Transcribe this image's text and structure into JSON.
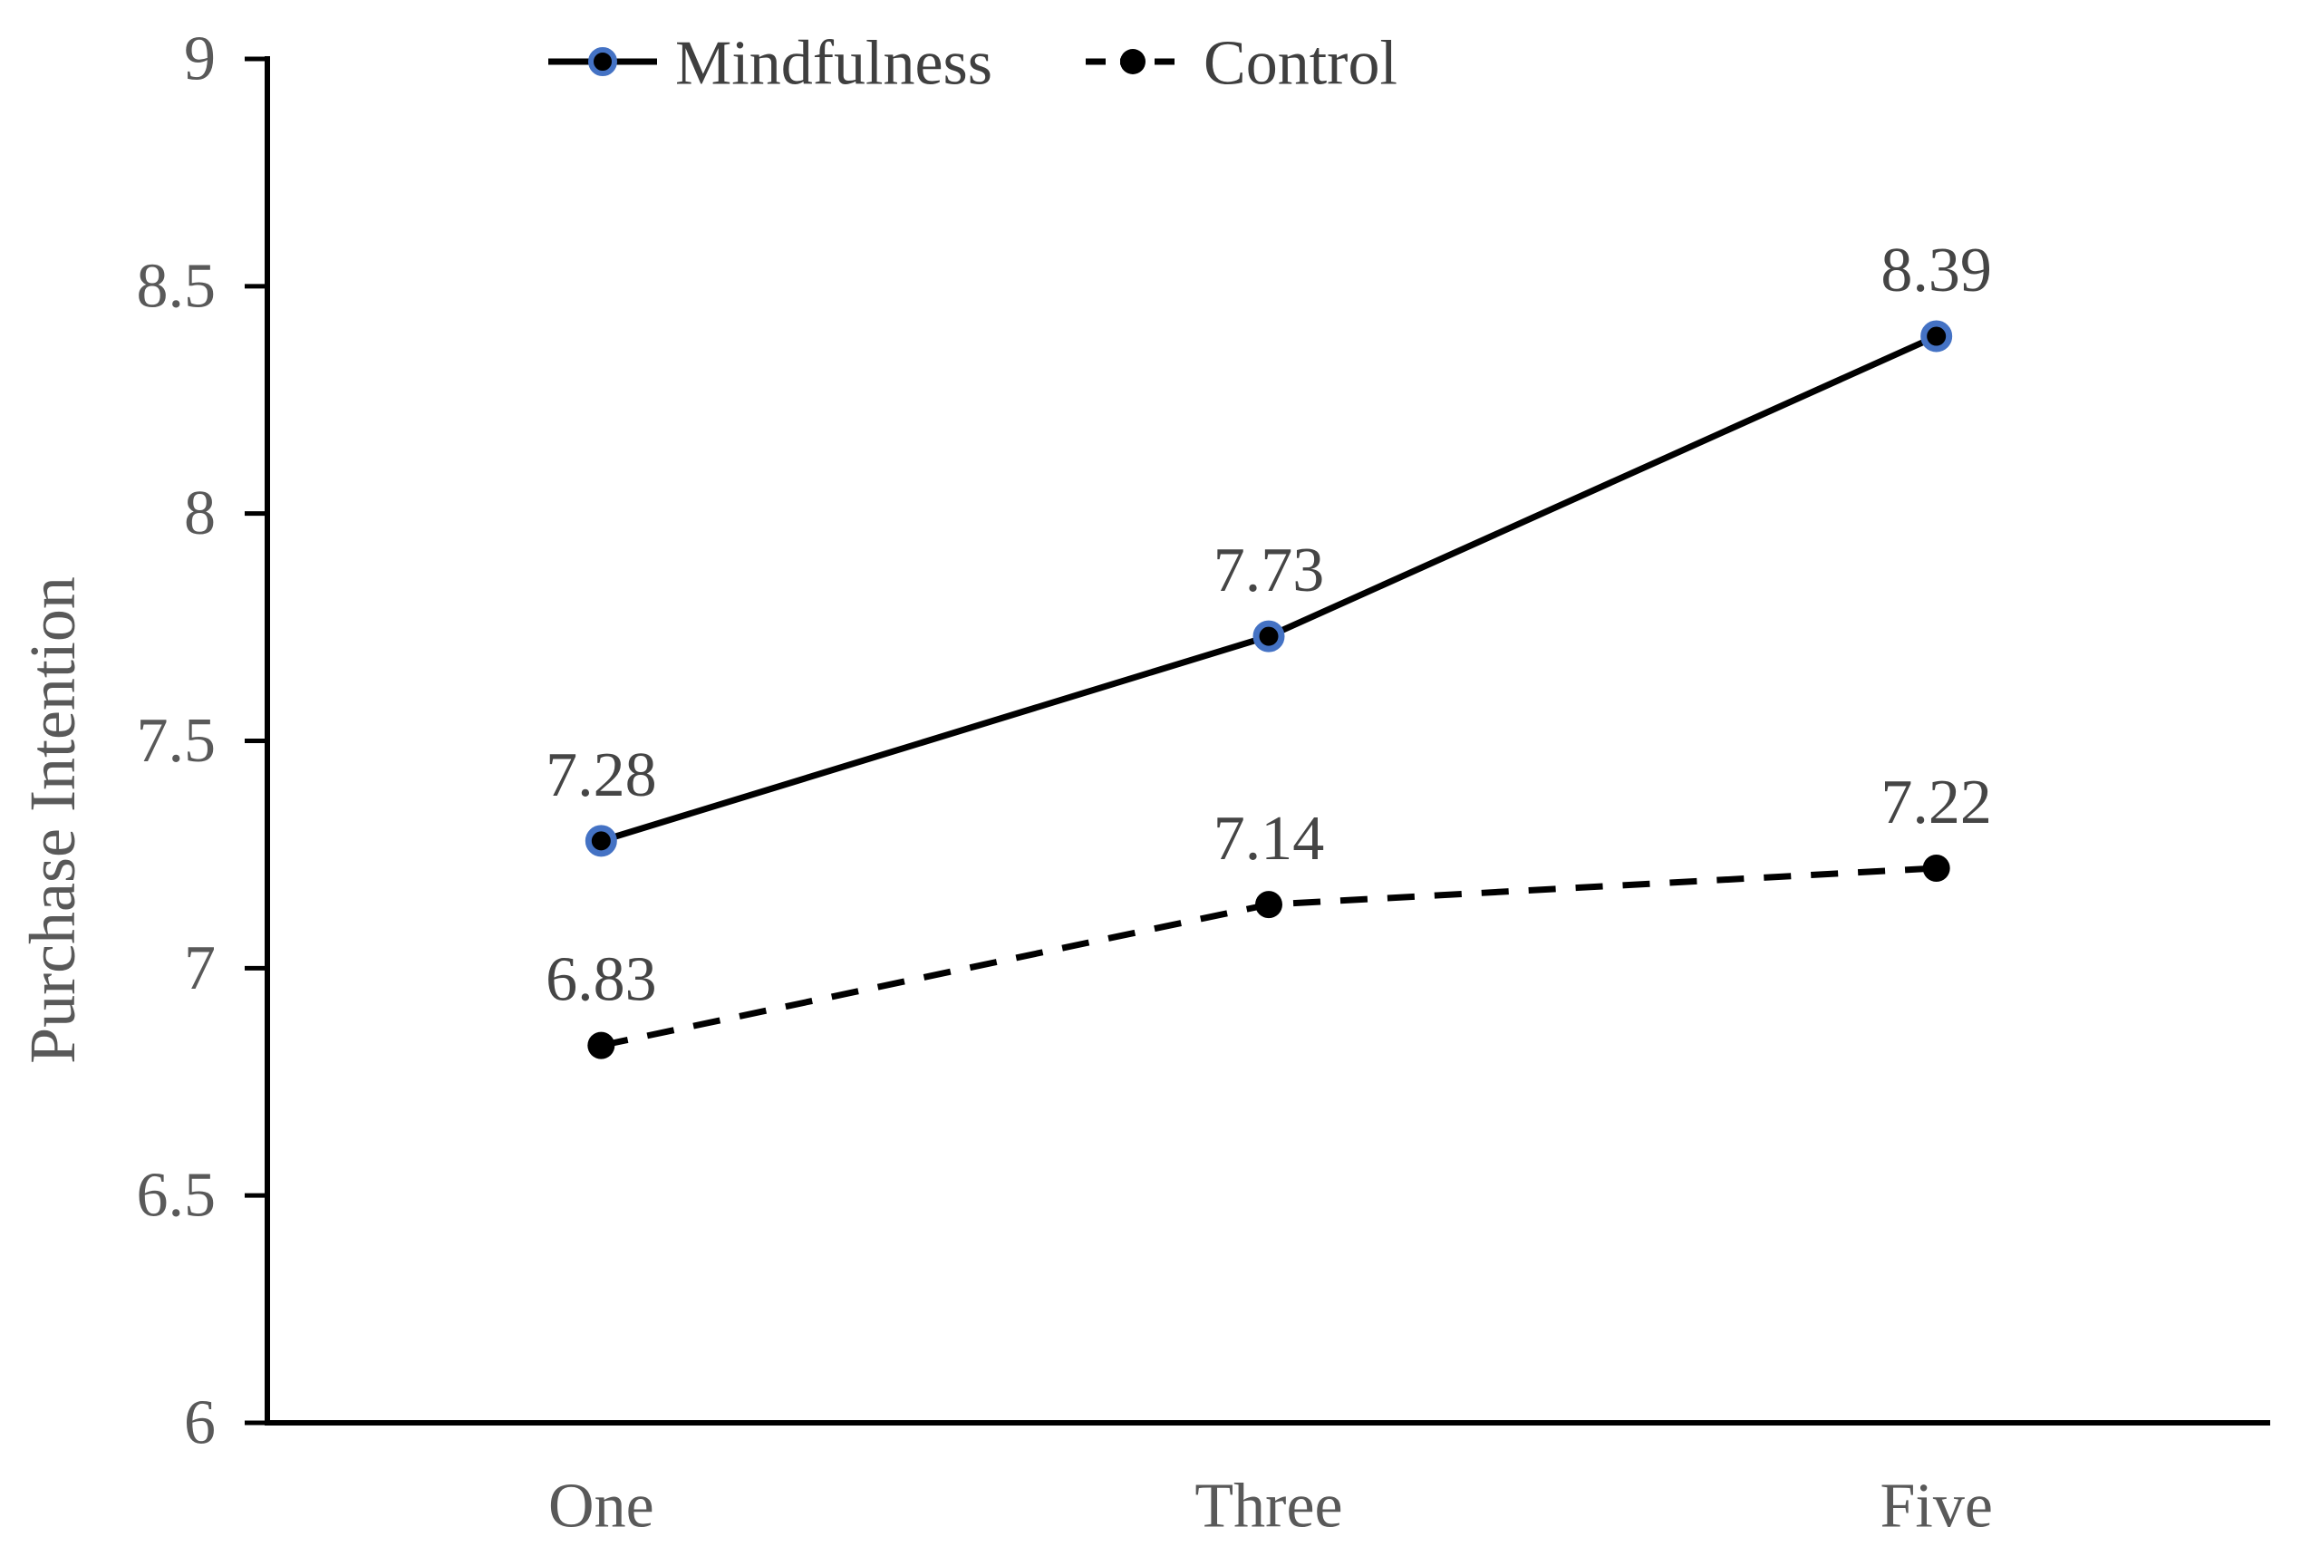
{
  "chart_data": {
    "type": "line",
    "title": "",
    "xlabel": "",
    "ylabel": "Purchase Intention",
    "categories": [
      "One",
      "Three",
      "Five"
    ],
    "series": [
      {
        "name": "Mindfulness",
        "values": [
          7.28,
          7.73,
          8.39
        ],
        "data_labels": [
          "7.28",
          "7.73",
          "8.39"
        ],
        "line_style": "solid",
        "marker": "circle-ringed",
        "marker_fill": "#000000",
        "marker_ring_color": "#4472C4"
      },
      {
        "name": "Control",
        "values": [
          6.83,
          7.14,
          7.22
        ],
        "data_labels": [
          "6.83",
          "7.14",
          "7.22"
        ],
        "line_style": "dashed",
        "marker": "circle",
        "marker_fill": "#000000"
      }
    ],
    "ylim": [
      6,
      9
    ],
    "ytick_step": 0.5,
    "ytick_labels": [
      "6",
      "6.5",
      "7",
      "7.5",
      "8",
      "8.5",
      "9"
    ],
    "legend": {
      "position": "top",
      "entries": [
        "Mindfulness",
        "Control"
      ]
    },
    "grid": false,
    "colors": {
      "line": "#000000",
      "axis": "#000000",
      "axis_text": "#595959",
      "data_label_text": "#454545",
      "legend_text": "#3f3f3f",
      "marker_ring": "#4472C4"
    }
  }
}
